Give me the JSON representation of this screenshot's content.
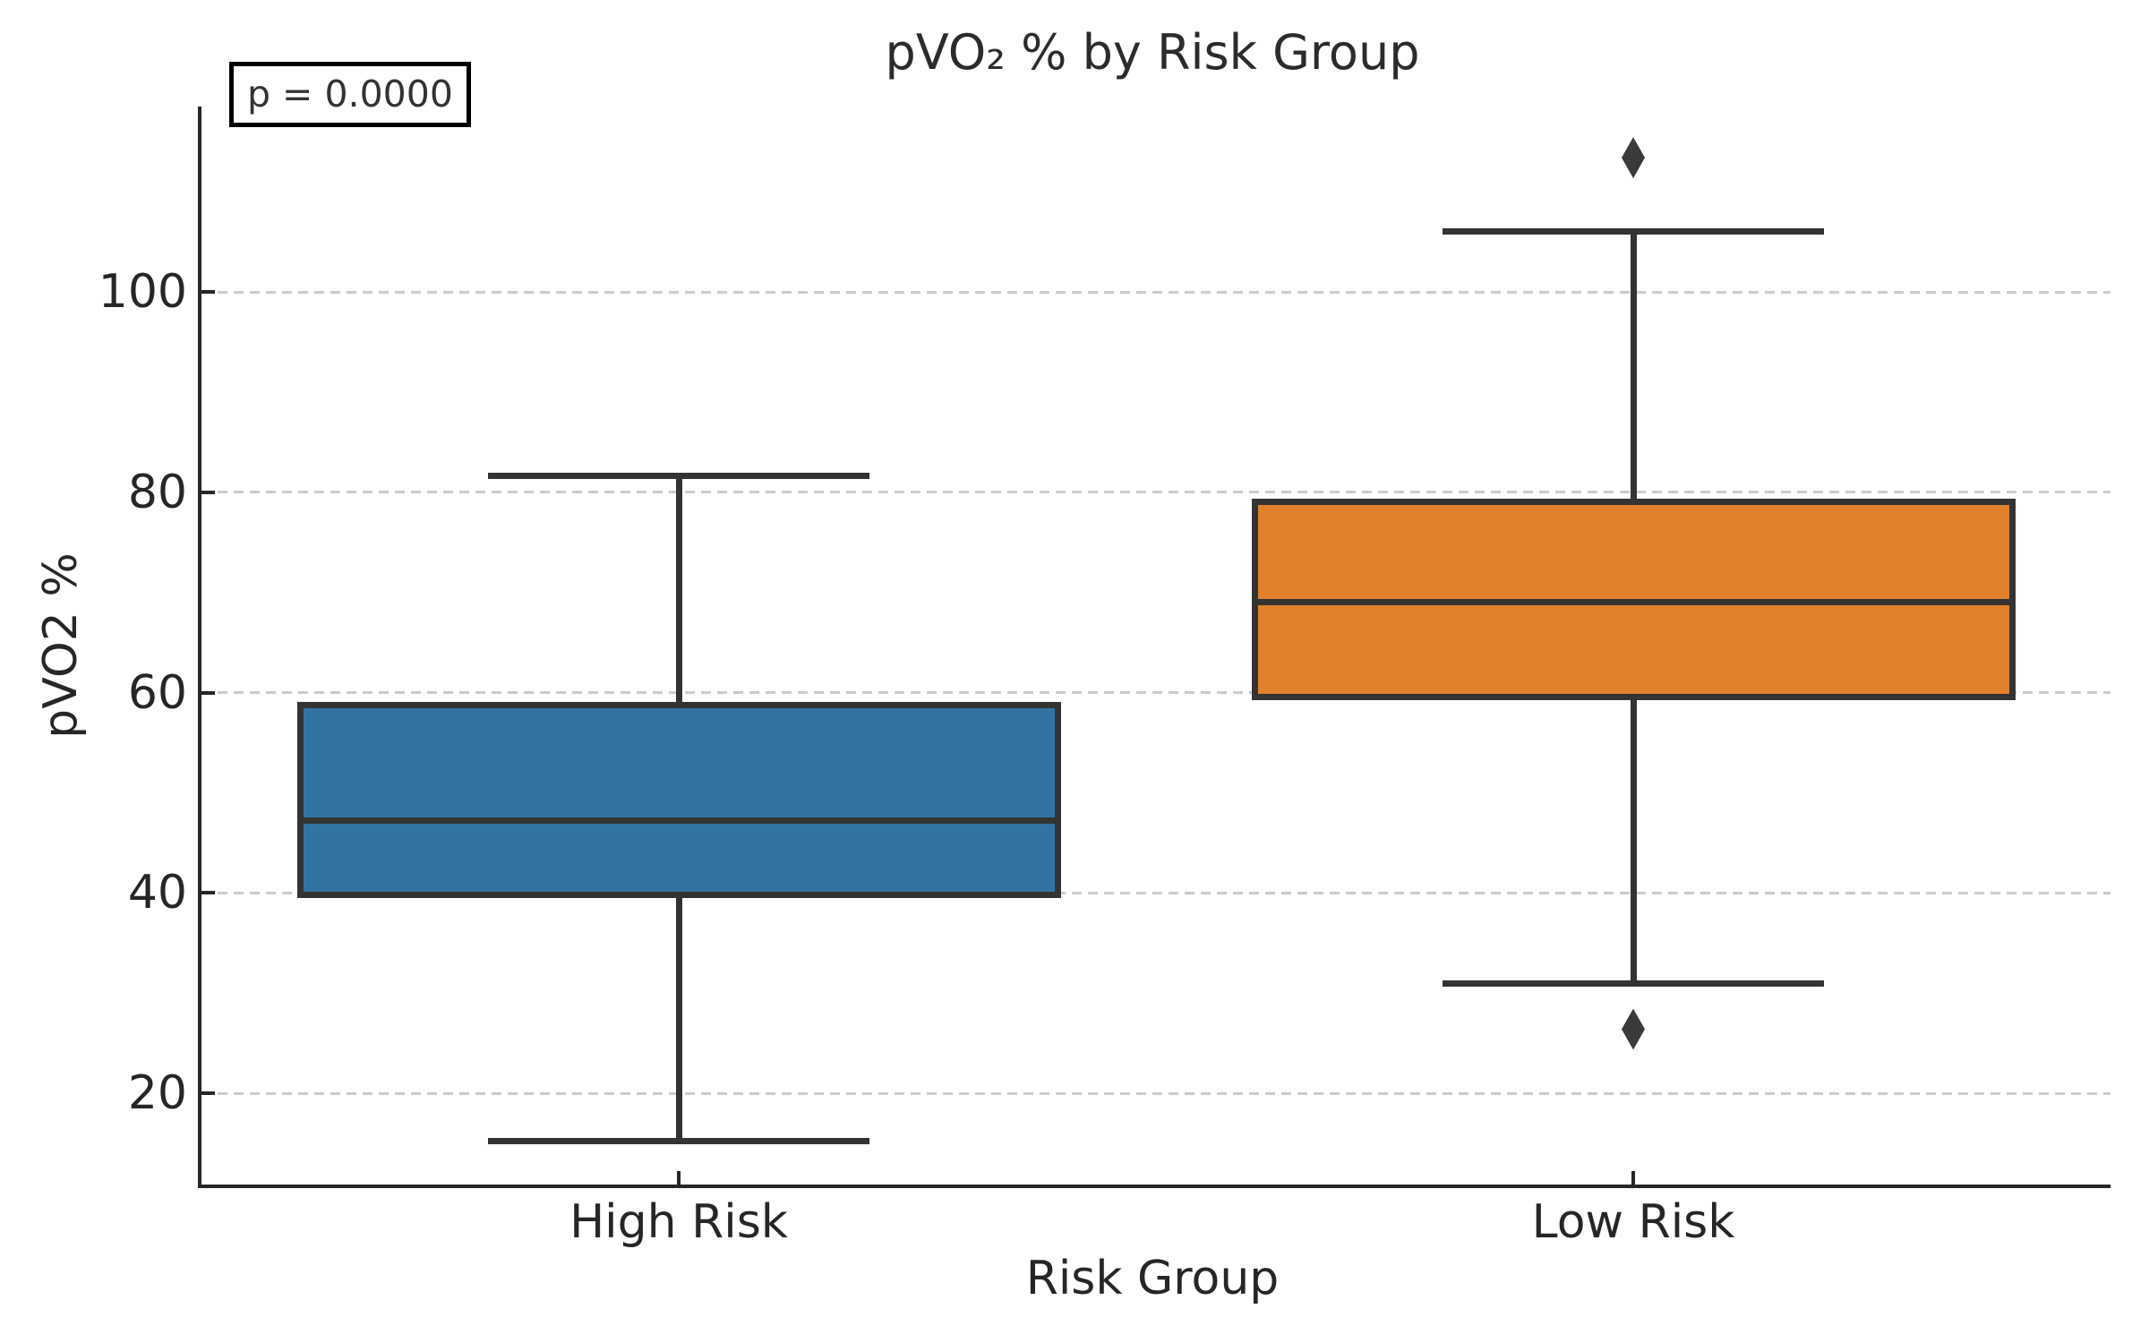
{
  "chart_data": {
    "type": "boxplot",
    "title": "pVO₂ % by Risk Group",
    "xlabel": "Risk Group",
    "ylabel": "pVO2 %",
    "annotation": "p = 0.0000",
    "categories": [
      "High Risk",
      "Low Risk"
    ],
    "y_ticks": [
      20,
      40,
      60,
      80,
      100
    ],
    "ylim": [
      10.9,
      118.5
    ],
    "grid": "horizontal-dashed",
    "legend": "none",
    "series": [
      {
        "name": "High Risk",
        "color": "#3274a1",
        "whisker_low": 15.2,
        "q1": 39.8,
        "median": 47.2,
        "q3": 58.8,
        "whisker_high": 81.6,
        "outliers": []
      },
      {
        "name": "Low Risk",
        "color": "#e1812c",
        "whisker_low": 31.0,
        "q1": 59.6,
        "median": 69.0,
        "q3": 79.0,
        "whisker_high": 106.0,
        "outliers": [
          113.4,
          26.4
        ]
      }
    ],
    "colors": {
      "line": "#333333",
      "spine": "#262626",
      "grid": "#cccccc",
      "outlier": "#3a3a3a",
      "text": "#262626",
      "annotation_border": "#000000"
    }
  }
}
